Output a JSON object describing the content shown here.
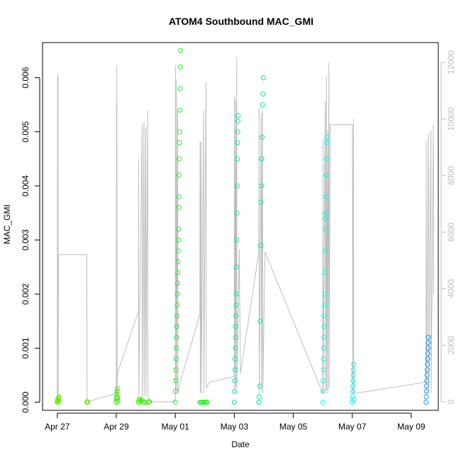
{
  "chart_data": {
    "type": "scatter",
    "title": "ATOM4 Southbound MAC_GMI",
    "xlabel": "Date",
    "ylabel": "MAC_GMI",
    "x_range": [
      "2022-04-26T12:00",
      "2022-05-09T22:00"
    ],
    "ylim": [
      -0.00015,
      0.00665
    ],
    "y2lim": [
      -300,
      12700
    ],
    "grid": false,
    "legend": "none",
    "x_ticks": [
      {
        "t": "2022-04-27T00:00",
        "label": "Apr 27"
      },
      {
        "t": "2022-04-29T00:00",
        "label": "Apr 29"
      },
      {
        "t": "2022-05-01T00:00",
        "label": "May 01"
      },
      {
        "t": "2022-05-03T00:00",
        "label": "May 03"
      },
      {
        "t": "2022-05-05T00:00",
        "label": "May 05"
      },
      {
        "t": "2022-05-07T00:00",
        "label": "May 07"
      },
      {
        "t": "2022-05-09T00:00",
        "label": "May 09"
      }
    ],
    "y_ticks": [
      {
        "v": 0.0,
        "label": "0.000"
      },
      {
        "v": 0.001,
        "label": "0.001"
      },
      {
        "v": 0.002,
        "label": "0.002"
      },
      {
        "v": 0.003,
        "label": "0.003"
      },
      {
        "v": 0.004,
        "label": "0.004"
      },
      {
        "v": 0.005,
        "label": "0.005"
      },
      {
        "v": 0.006,
        "label": "0.006"
      }
    ],
    "y2_ticks": [
      {
        "v": 0,
        "label": "0"
      },
      {
        "v": 2000,
        "label": "2000"
      },
      {
        "v": 4000,
        "label": "4000"
      },
      {
        "v": 6000,
        "label": "6000"
      },
      {
        "v": 8000,
        "label": "8000"
      },
      {
        "v": 10000,
        "label": "10000"
      },
      {
        "v": 12000,
        "label": "12000"
      }
    ],
    "colors": {
      "axis": "#000000",
      "right_axis": "#bebebe",
      "line": "#bebebe"
    },
    "line_series": {
      "points": [
        [
          "2022-04-27T00:00",
          0
        ],
        [
          "2022-04-27T00:10",
          11500
        ],
        [
          "2022-04-27T00:20",
          300
        ],
        [
          "2022-04-27T00:30",
          11600
        ],
        [
          "2022-04-27T00:40",
          0
        ],
        [
          "2022-04-27T01:00",
          5200
        ],
        [
          "2022-04-28T00:00",
          5200
        ],
        [
          "2022-04-28T00:10",
          0
        ],
        [
          "2022-04-29T00:00",
          300
        ],
        [
          "2022-04-29T00:10",
          10500
        ],
        [
          "2022-04-29T00:20",
          200
        ],
        [
          "2022-04-29T00:30",
          11900
        ],
        [
          "2022-04-29T00:40",
          200
        ],
        [
          "2022-04-29T00:50",
          1000
        ],
        [
          "2022-04-29T18:00",
          3200
        ],
        [
          "2022-04-29T18:10",
          8600
        ],
        [
          "2022-04-29T18:20",
          200
        ],
        [
          "2022-04-29T21:00",
          9800
        ],
        [
          "2022-04-29T21:10",
          200
        ],
        [
          "2022-04-29T22:30",
          9900
        ],
        [
          "2022-04-29T22:40",
          200
        ],
        [
          "2022-04-30T00:00",
          9700
        ],
        [
          "2022-04-30T00:10",
          200
        ],
        [
          "2022-04-30T01:30",
          10300
        ],
        [
          "2022-04-30T01:40",
          200
        ],
        [
          "2022-04-30T04:00",
          0
        ],
        [
          "2022-05-01T00:00",
          0
        ],
        [
          "2022-05-01T00:10",
          11900
        ],
        [
          "2022-05-01T00:20",
          300
        ],
        [
          "2022-05-01T01:00",
          11400
        ],
        [
          "2022-05-01T01:10",
          400
        ],
        [
          "2022-05-01T02:00",
          10300
        ],
        [
          "2022-05-01T02:10",
          300
        ],
        [
          "2022-05-01T04:00",
          700
        ],
        [
          "2022-05-01T20:00",
          3100
        ],
        [
          "2022-05-01T20:10",
          9200
        ],
        [
          "2022-05-01T20:20",
          300
        ],
        [
          "2022-05-01T21:00",
          9200
        ],
        [
          "2022-05-01T21:10",
          300
        ],
        [
          "2022-05-01T23:00",
          10300
        ],
        [
          "2022-05-01T23:10",
          300
        ],
        [
          "2022-05-02T01:00",
          11300
        ],
        [
          "2022-05-02T01:10",
          500
        ],
        [
          "2022-05-02T04:00",
          700
        ],
        [
          "2022-05-03T00:00",
          900
        ],
        [
          "2022-05-03T00:10",
          10800
        ],
        [
          "2022-05-03T00:20",
          300
        ],
        [
          "2022-05-03T01:00",
          10700
        ],
        [
          "2022-05-03T01:10",
          500
        ],
        [
          "2022-05-03T02:00",
          12200
        ],
        [
          "2022-05-03T02:10",
          500
        ],
        [
          "2022-05-03T04:00",
          5400
        ],
        [
          "2022-05-03T05:00",
          1000
        ],
        [
          "2022-05-03T20:00",
          5300
        ],
        [
          "2022-05-03T20:10",
          10400
        ],
        [
          "2022-05-03T20:20",
          300
        ],
        [
          "2022-05-03T22:00",
          10200
        ],
        [
          "2022-05-03T22:10",
          400
        ],
        [
          "2022-05-03T23:00",
          10300
        ],
        [
          "2022-05-03T23:10",
          300
        ],
        [
          "2022-05-04T01:00",
          5300
        ],
        [
          "2022-05-06T00:00",
          300
        ],
        [
          "2022-05-06T00:10",
          9300
        ],
        [
          "2022-05-06T00:20",
          300
        ],
        [
          "2022-05-06T02:00",
          10600
        ],
        [
          "2022-05-06T02:10",
          300
        ],
        [
          "2022-05-06T03:00",
          11500
        ],
        [
          "2022-05-06T03:10",
          400
        ],
        [
          "2022-05-06T04:00",
          9600
        ],
        [
          "2022-05-06T04:10",
          300
        ],
        [
          "2022-05-06T05:00",
          12000
        ],
        [
          "2022-05-06T05:10",
          500
        ],
        [
          "2022-05-06T06:00",
          9800
        ],
        [
          "2022-05-07T00:00",
          9800
        ],
        [
          "2022-05-07T00:10",
          9400
        ],
        [
          "2022-05-07T00:20",
          300
        ],
        [
          "2022-05-07T01:00",
          10000
        ],
        [
          "2022-05-07T01:10",
          300
        ],
        [
          "2022-05-07T02:00",
          300
        ],
        [
          "2022-05-09T12:00",
          700
        ],
        [
          "2022-05-09T12:10",
          9200
        ],
        [
          "2022-05-09T12:20",
          300
        ],
        [
          "2022-05-09T14:00",
          9500
        ],
        [
          "2022-05-09T14:10",
          300
        ],
        [
          "2022-05-09T16:00",
          9600
        ],
        [
          "2022-05-09T16:10",
          300
        ],
        [
          "2022-05-09T18:00",
          9800
        ],
        [
          "2022-05-09T18:10",
          3800
        ]
      ]
    },
    "point_groups": [
      {
        "color": "#66ee00",
        "values": [
          [
            "2022-04-27T00:00",
            0.0
          ],
          [
            "2022-04-27T00:10",
            2e-05
          ],
          [
            "2022-04-27T00:20",
            4e-05
          ],
          [
            "2022-04-27T00:30",
            6e-05
          ],
          [
            "2022-04-27T00:40",
            3e-05
          ],
          [
            "2022-04-27T01:00",
            8e-05
          ],
          [
            "2022-04-27T01:20",
            0.0001
          ],
          [
            "2022-04-27T01:40",
            1e-05
          ]
        ]
      },
      {
        "color": "#70ee00",
        "values": [
          [
            "2022-04-28T00:00",
            0.0
          ],
          [
            "2022-04-28T00:20",
            1e-05
          ],
          [
            "2022-04-28T00:40",
            0.0
          ]
        ]
      },
      {
        "color": "#3ee800",
        "values": [
          [
            "2022-04-29T00:00",
            0.0
          ],
          [
            "2022-04-29T00:10",
            5e-05
          ],
          [
            "2022-04-29T00:20",
            0.0001
          ],
          [
            "2022-04-29T00:30",
            0.00015
          ],
          [
            "2022-04-29T00:40",
            0.0002
          ],
          [
            "2022-04-29T00:50",
            0.00025
          ],
          [
            "2022-04-29T01:00",
            8e-05
          ],
          [
            "2022-04-29T01:10",
            2e-05
          ]
        ]
      },
      {
        "color": "#35e800",
        "values": [
          [
            "2022-04-29T18:00",
            0.0
          ],
          [
            "2022-04-29T18:30",
            3e-05
          ],
          [
            "2022-04-29T19:00",
            6e-05
          ],
          [
            "2022-04-29T20:00",
            2e-05
          ],
          [
            "2022-04-29T21:00",
            4e-05
          ],
          [
            "2022-04-29T22:00",
            0.0
          ],
          [
            "2022-04-30T00:00",
            0.0
          ],
          [
            "2022-04-30T02:00",
            0.0
          ],
          [
            "2022-04-30T03:00",
            1e-05
          ]
        ]
      },
      {
        "color": "#22ee33",
        "values": [
          [
            "2022-05-01T00:00",
            0.0
          ],
          [
            "2022-05-01T00:10",
            0.0002
          ],
          [
            "2022-05-01T00:20",
            0.0004
          ],
          [
            "2022-05-01T00:30",
            0.0006
          ],
          [
            "2022-05-01T00:40",
            0.0008
          ],
          [
            "2022-05-01T00:50",
            0.001
          ],
          [
            "2022-05-01T01:00",
            0.0012
          ],
          [
            "2022-05-01T01:10",
            0.0014
          ],
          [
            "2022-05-01T01:20",
            0.0016
          ],
          [
            "2022-05-01T01:30",
            0.0018
          ],
          [
            "2022-05-01T01:40",
            0.002
          ],
          [
            "2022-05-01T01:50",
            0.0022
          ],
          [
            "2022-05-01T02:00",
            0.0024
          ],
          [
            "2022-05-01T02:10",
            0.0026
          ],
          [
            "2022-05-01T02:20",
            0.0028
          ],
          [
            "2022-05-01T02:30",
            0.003
          ],
          [
            "2022-05-01T02:40",
            0.0032
          ],
          [
            "2022-05-01T02:50",
            0.0036
          ],
          [
            "2022-05-01T03:00",
            0.0038
          ],
          [
            "2022-05-01T03:10",
            0.0042
          ],
          [
            "2022-05-01T03:20",
            0.0045
          ],
          [
            "2022-05-01T03:30",
            0.0048
          ],
          [
            "2022-05-01T03:40",
            0.005
          ],
          [
            "2022-05-01T03:50",
            0.0054
          ],
          [
            "2022-05-01T04:00",
            0.0058
          ],
          [
            "2022-05-01T04:10",
            0.0062
          ],
          [
            "2022-05-01T04:20",
            0.0065
          ]
        ]
      },
      {
        "color": "#28ee28",
        "values": [
          [
            "2022-05-01T20:00",
            0.0
          ],
          [
            "2022-05-01T21:00",
            0.0
          ],
          [
            "2022-05-01T22:00",
            0.0
          ],
          [
            "2022-05-01T23:00",
            0.0
          ],
          [
            "2022-05-02T00:00",
            0.0
          ],
          [
            "2022-05-02T01:00",
            0.0
          ],
          [
            "2022-05-02T02:00",
            0.0
          ]
        ]
      },
      {
        "color": "#00ee99",
        "values": [
          [
            "2022-05-03T00:00",
            0.0
          ],
          [
            "2022-05-03T00:10",
            0.0002
          ],
          [
            "2022-05-03T00:20",
            0.0004
          ],
          [
            "2022-05-03T00:30",
            0.0006
          ],
          [
            "2022-05-03T00:40",
            0.0008
          ],
          [
            "2022-05-03T00:50",
            0.001
          ],
          [
            "2022-05-03T01:00",
            0.0012
          ],
          [
            "2022-05-03T01:10",
            0.0014
          ],
          [
            "2022-05-03T01:20",
            0.0016
          ],
          [
            "2022-05-03T01:30",
            0.0018
          ],
          [
            "2022-05-03T01:40",
            0.002
          ],
          [
            "2022-05-03T01:50",
            0.0025
          ],
          [
            "2022-05-03T02:00",
            0.003
          ],
          [
            "2022-05-03T02:10",
            0.0035
          ],
          [
            "2022-05-03T02:20",
            0.004
          ],
          [
            "2022-05-03T02:30",
            0.0045
          ],
          [
            "2022-05-03T02:40",
            0.0048
          ],
          [
            "2022-05-03T02:50",
            0.005
          ],
          [
            "2022-05-03T03:00",
            0.0052
          ],
          [
            "2022-05-03T03:10",
            0.0053
          ]
        ]
      },
      {
        "color": "#00ee88",
        "values": [
          [
            "2022-05-03T20:00",
            0.0
          ],
          [
            "2022-05-03T20:20",
            0.0001
          ],
          [
            "2022-05-03T20:40",
            0.0003
          ],
          [
            "2022-05-03T21:00",
            0.0015
          ],
          [
            "2022-05-03T21:20",
            0.0029
          ],
          [
            "2022-05-03T21:40",
            0.0037
          ],
          [
            "2022-05-03T22:00",
            0.004
          ],
          [
            "2022-05-03T22:20",
            0.0045
          ],
          [
            "2022-05-03T22:40",
            0.0049
          ],
          [
            "2022-05-03T23:00",
            0.0055
          ],
          [
            "2022-05-03T23:20",
            0.0057
          ],
          [
            "2022-05-03T23:40",
            0.006
          ]
        ]
      },
      {
        "color": "#00ffee",
        "values": [
          [
            "2022-05-06T00:00",
            0.0
          ],
          [
            "2022-05-06T00:10",
            0.0002
          ],
          [
            "2022-05-06T00:20",
            0.0004
          ],
          [
            "2022-05-06T00:30",
            0.0006
          ],
          [
            "2022-05-06T00:40",
            0.0008
          ],
          [
            "2022-05-06T00:50",
            0.001
          ],
          [
            "2022-05-06T01:00",
            0.0012
          ],
          [
            "2022-05-06T01:10",
            0.0014
          ],
          [
            "2022-05-06T01:20",
            0.0016
          ],
          [
            "2022-05-06T01:30",
            0.0018
          ],
          [
            "2022-05-06T01:40",
            0.002
          ],
          [
            "2022-05-06T01:50",
            0.0024
          ],
          [
            "2022-05-06T02:00",
            0.0028
          ],
          [
            "2022-05-06T02:10",
            0.0032
          ],
          [
            "2022-05-06T02:20",
            0.0034
          ],
          [
            "2022-05-06T02:30",
            0.0035
          ],
          [
            "2022-05-06T02:40",
            0.0038
          ],
          [
            "2022-05-06T02:50",
            0.0042
          ],
          [
            "2022-05-06T03:00",
            0.0045
          ],
          [
            "2022-05-06T03:10",
            0.0048
          ],
          [
            "2022-05-06T03:20",
            0.0049
          ]
        ]
      },
      {
        "color": "#00eeee",
        "values": [
          [
            "2022-05-07T00:00",
            0.0
          ],
          [
            "2022-05-07T00:10",
            0.0001
          ],
          [
            "2022-05-07T00:20",
            0.0002
          ],
          [
            "2022-05-07T00:30",
            0.0003
          ],
          [
            "2022-05-07T00:40",
            0.0004
          ],
          [
            "2022-05-07T00:50",
            0.0005
          ],
          [
            "2022-05-07T01:00",
            0.0006
          ],
          [
            "2022-05-07T01:10",
            0.0007
          ],
          [
            "2022-05-07T01:20",
            5e-05
          ]
        ]
      },
      {
        "color": "#1199ee",
        "values": [
          [
            "2022-05-09T12:00",
            0.0
          ],
          [
            "2022-05-09T12:10",
            0.0001
          ],
          [
            "2022-05-09T12:20",
            0.0002
          ],
          [
            "2022-05-09T12:30",
            0.0003
          ],
          [
            "2022-05-09T12:40",
            0.0004
          ],
          [
            "2022-05-09T12:50",
            0.0005
          ],
          [
            "2022-05-09T13:00",
            0.0006
          ],
          [
            "2022-05-09T13:10",
            0.0007
          ],
          [
            "2022-05-09T13:20",
            0.0008
          ],
          [
            "2022-05-09T13:30",
            0.0009
          ],
          [
            "2022-05-09T13:40",
            0.001
          ],
          [
            "2022-05-09T13:50",
            0.0011
          ],
          [
            "2022-05-09T14:00",
            0.0012
          ]
        ]
      }
    ]
  }
}
